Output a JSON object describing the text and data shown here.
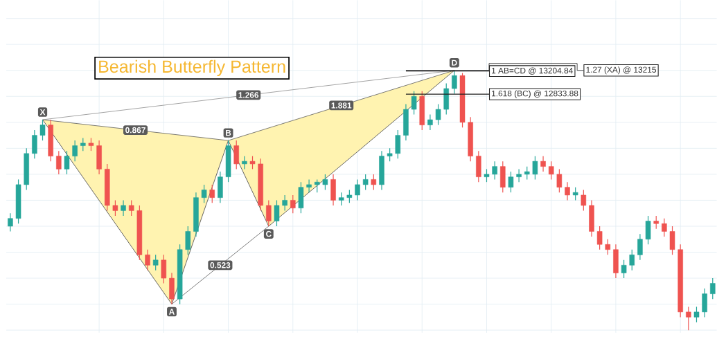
{
  "chart_data": {
    "type": "candlestick",
    "title": "Bearish Butterfly Pattern",
    "grid": true,
    "ylim": [
      9013,
      14338
    ],
    "yticks": [
      {
        "value": 9055,
        "label": null
      },
      {
        "value": 9471,
        "label": null
      },
      {
        "value": 9887,
        "label": null
      },
      {
        "value": 10303,
        "label": null
      },
      {
        "value": 10719,
        "label": null
      },
      {
        "value": 11135,
        "label": null
      },
      {
        "value": 11551,
        "label": null
      },
      {
        "value": 11967,
        "label": null
      },
      {
        "value": 12383,
        "label": null
      },
      {
        "value": 12799,
        "label": null
      },
      {
        "value": 13215,
        "label": null
      },
      {
        "value": 13631,
        "label": null
      },
      {
        "value": 14047,
        "label": null
      }
    ],
    "categories": [
      null,
      null,
      null,
      null,
      null,
      null,
      null,
      null,
      null,
      null,
      null,
      null,
      null,
      null,
      null,
      null,
      null,
      null,
      null,
      null,
      null,
      null,
      null,
      null,
      null,
      null,
      null,
      null,
      null,
      null,
      null,
      null,
      null,
      null,
      null,
      null,
      null,
      null,
      null,
      null,
      null,
      null,
      null,
      null,
      null,
      null,
      null,
      null,
      null,
      null,
      null,
      null,
      null,
      null,
      null,
      null,
      null,
      null,
      null,
      null,
      null,
      null,
      null,
      null,
      null,
      null,
      null,
      null,
      null,
      null,
      null,
      null,
      null,
      null,
      null,
      null,
      null,
      null,
      null,
      null,
      null,
      null,
      null,
      null,
      null,
      null,
      null,
      null
    ],
    "ohlc": [
      [
        10719,
        10927,
        10636,
        10844
      ],
      [
        10844,
        11468,
        10761,
        11385
      ],
      [
        11385,
        11967,
        11301,
        11884
      ],
      [
        11884,
        12258,
        11801,
        12175
      ],
      [
        12175,
        12425,
        12092,
        12341
      ],
      [
        12341,
        12425,
        11759,
        11842
      ],
      [
        11842,
        11925,
        11551,
        11634
      ],
      [
        11634,
        11925,
        11551,
        11842
      ],
      [
        11842,
        12092,
        11759,
        12009
      ],
      [
        12009,
        12133,
        11925,
        12050
      ],
      [
        12050,
        12133,
        11925,
        12009
      ],
      [
        12009,
        12092,
        11551,
        11634
      ],
      [
        11634,
        11717,
        10969,
        11052
      ],
      [
        11052,
        11135,
        10885,
        10969
      ],
      [
        10969,
        11135,
        10885,
        11052
      ],
      [
        11052,
        11135,
        10885,
        10969
      ],
      [
        10969,
        11052,
        10178,
        10261
      ],
      [
        10261,
        10345,
        10012,
        10095
      ],
      [
        10095,
        10261,
        10012,
        10178
      ],
      [
        10178,
        10261,
        9804,
        9887
      ],
      [
        9887,
        9970,
        9471,
        9554
      ],
      [
        9554,
        10428,
        9471,
        10345
      ],
      [
        10345,
        10719,
        10261,
        10636
      ],
      [
        10636,
        11260,
        10553,
        11177
      ],
      [
        11177,
        11385,
        11093,
        11301
      ],
      [
        11301,
        11385,
        11093,
        11177
      ],
      [
        11177,
        11593,
        11093,
        11509
      ],
      [
        11509,
        12092,
        11426,
        12009
      ],
      [
        12009,
        12092,
        11634,
        11717
      ],
      [
        11717,
        11842,
        11634,
        11759
      ],
      [
        11759,
        11842,
        11634,
        11717
      ],
      [
        11717,
        11801,
        10969,
        11052
      ],
      [
        11052,
        11135,
        10719,
        10802
      ],
      [
        10802,
        11135,
        10719,
        11052
      ],
      [
        11052,
        11218,
        10969,
        11135
      ],
      [
        11135,
        11218,
        10927,
        11010
      ],
      [
        11010,
        11426,
        10927,
        11343
      ],
      [
        11343,
        11468,
        11260,
        11385
      ],
      [
        11385,
        11468,
        11260,
        11426
      ],
      [
        11385,
        11551,
        11301,
        11468
      ],
      [
        11468,
        11551,
        11052,
        11135
      ],
      [
        11135,
        11260,
        11052,
        11177
      ],
      [
        11177,
        11301,
        11093,
        11218
      ],
      [
        11218,
        11468,
        11135,
        11385
      ],
      [
        11385,
        11551,
        11301,
        11468
      ],
      [
        11468,
        11551,
        11301,
        11385
      ],
      [
        11385,
        11925,
        11301,
        11842
      ],
      [
        11842,
        11967,
        11759,
        11884
      ],
      [
        11884,
        12258,
        11801,
        12175
      ],
      [
        12175,
        12674,
        12092,
        12591
      ],
      [
        12591,
        12882,
        12508,
        12799
      ],
      [
        12799,
        12882,
        12258,
        12341
      ],
      [
        12341,
        12508,
        12258,
        12425
      ],
      [
        12425,
        12674,
        12341,
        12591
      ],
      [
        12591,
        13007,
        12508,
        12924
      ],
      [
        12924,
        13215,
        12841,
        13132
      ],
      [
        13132,
        13173,
        12300,
        12383
      ],
      [
        12383,
        12466,
        11759,
        11842
      ],
      [
        11842,
        11925,
        11426,
        11509
      ],
      [
        11509,
        11634,
        11426,
        11551
      ],
      [
        11551,
        11759,
        11468,
        11676
      ],
      [
        11676,
        11759,
        11260,
        11343
      ],
      [
        11343,
        11593,
        11260,
        11509
      ],
      [
        11509,
        11634,
        11426,
        11551
      ],
      [
        11551,
        11676,
        11468,
        11593
      ],
      [
        11551,
        11842,
        11468,
        11759
      ],
      [
        11759,
        11842,
        11593,
        11676
      ],
      [
        11676,
        11759,
        11468,
        11551
      ],
      [
        11551,
        11634,
        11260,
        11343
      ],
      [
        11343,
        11426,
        11135,
        11218
      ],
      [
        11218,
        11343,
        11135,
        11260
      ],
      [
        11218,
        11301,
        10969,
        11052
      ],
      [
        11052,
        11135,
        10553,
        10636
      ],
      [
        10636,
        10719,
        10345,
        10428
      ],
      [
        10428,
        10511,
        10261,
        10345
      ],
      [
        10345,
        10428,
        9887,
        9970
      ],
      [
        9970,
        10178,
        9887,
        10095
      ],
      [
        10095,
        10345,
        10012,
        10261
      ],
      [
        10261,
        10594,
        10178,
        10511
      ],
      [
        10511,
        10885,
        10428,
        10802
      ],
      [
        10802,
        10885,
        10677,
        10761
      ],
      [
        10761,
        10844,
        10553,
        10636
      ],
      [
        10636,
        10719,
        10261,
        10345
      ],
      [
        10345,
        10428,
        9263,
        9346
      ],
      [
        9346,
        9429,
        9055,
        9263
      ],
      [
        9263,
        9429,
        9180,
        9346
      ],
      [
        9346,
        9721,
        9263,
        9637
      ],
      [
        9637,
        9887,
        9554,
        9804
      ]
    ],
    "series": [
      {
        "type": "line",
        "color": "#5a5a5a",
        "values": [
          null,
          null,
          null,
          null,
          12425,
          null,
          null,
          null,
          null,
          null,
          null,
          null,
          null,
          null,
          null,
          null,
          null,
          null,
          null,
          null,
          9471,
          null,
          null,
          null,
          null,
          null,
          null,
          12092,
          null,
          null,
          null,
          null,
          10719,
          null,
          null,
          null,
          null,
          null,
          null,
          null,
          null,
          null,
          null,
          null,
          null,
          null,
          null,
          null,
          null,
          null,
          null,
          null,
          null,
          null,
          null,
          13215,
          null,
          null,
          null,
          null,
          null,
          null,
          null,
          null,
          null,
          null,
          null,
          null,
          null,
          null,
          null,
          null,
          null,
          null,
          null,
          null,
          null,
          null,
          null,
          null,
          null,
          null,
          null,
          null,
          null,
          null,
          null,
          null
        ],
        "value_labels": [
          null,
          null,
          null,
          null,
          "X",
          null,
          null,
          null,
          null,
          null,
          null,
          null,
          null,
          null,
          null,
          null,
          null,
          null,
          null,
          null,
          "A",
          null,
          null,
          null,
          null,
          null,
          null,
          "B",
          null,
          null,
          null,
          null,
          "C",
          null,
          null,
          null,
          null,
          null,
          null,
          null,
          null,
          null,
          null,
          null,
          null,
          null,
          null,
          null,
          null,
          null,
          null,
          null,
          null,
          null,
          null,
          "D",
          null,
          null,
          null,
          null,
          null,
          null,
          null,
          null,
          null,
          null,
          null,
          null,
          null,
          null,
          null,
          null,
          null,
          null,
          null,
          null,
          null,
          null,
          null,
          null,
          null,
          null,
          null,
          null,
          null,
          null,
          null,
          null
        ]
      }
    ],
    "annotations": [
      "0.867",
      "0.523",
      "1.881",
      "1.266"
    ],
    "ref_lines": [
      {
        "axis": "y",
        "value": 13204.84,
        "label": "1 AB=CD @ 13204.84",
        "color": "#1e1e1e"
      },
      {
        "axis": "y",
        "value": 13215,
        "label": "1.27 (XA) @ 13215",
        "color": "#1e1e1e"
      },
      {
        "axis": "y",
        "value": 12833.88,
        "label": "1.618 (BC) @ 12833.88",
        "color": "#1e1e1e"
      }
    ]
  }
}
